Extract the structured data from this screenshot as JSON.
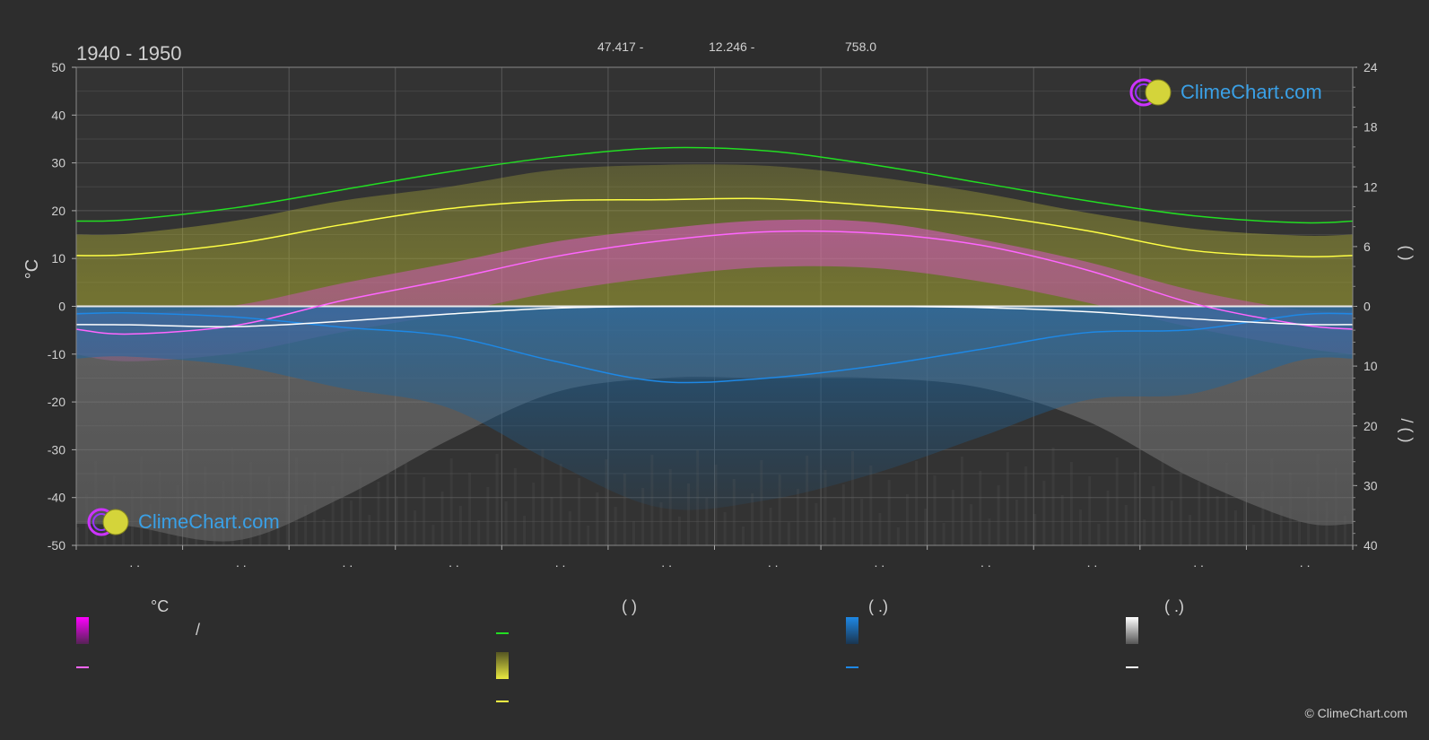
{
  "header": {
    "period": "1940 - 1950",
    "latitude": "47.417 -",
    "longitude": "12.246 -",
    "elevation": "758.0"
  },
  "colors": {
    "sunshine": "#22dd22",
    "daylight": "#d8e03a",
    "temp_avg": "#ff66ff",
    "snow_avg": "#ffffff",
    "rain_avg": "#1e88e5",
    "max_temp_line": "#ffff44",
    "brand_blue": "#3aa0e6"
  },
  "chart_data": {
    "type": "area",
    "x_ticks": [
      ". .",
      ". .",
      ". .",
      ". .",
      ". .",
      ". .",
      ". .",
      ". .",
      ". .",
      ". .",
      ". .",
      ". ."
    ],
    "left_axis": {
      "label": "°C",
      "range": [
        -50,
        50
      ],
      "ticks": [
        50,
        40,
        30,
        20,
        10,
        0,
        -10,
        -20,
        -30,
        -40,
        -50
      ]
    },
    "right_axis_top": {
      "range": [
        0,
        24
      ],
      "ticks": [
        24,
        18,
        12,
        6,
        0
      ]
    },
    "right_axis_bottom": {
      "range": [
        0,
        40
      ],
      "ticks": [
        10,
        20,
        30,
        40
      ]
    },
    "right_axis_label_top": "(   )",
    "right_axis_label_bottom": "/    (   )",
    "months_x": [
      0.5,
      1.5,
      2.5,
      3.5,
      4.5,
      5.5,
      6.5,
      7.5,
      8.5,
      9.5,
      10.5,
      11.5
    ],
    "series": [
      {
        "id": "sunshine",
        "values": [
          8.7,
          9.9,
          11.7,
          13.5,
          15.0,
          15.9,
          15.6,
          14.2,
          12.4,
          10.6,
          9.1,
          8.4
        ]
      },
      {
        "id": "daylight_top",
        "values": [
          7.3,
          8.6,
          10.6,
          12.0,
          13.7,
          14.2,
          14.1,
          13.0,
          11.4,
          9.4,
          7.8,
          7.1
        ]
      },
      {
        "id": "daylight_mean",
        "values": [
          5.2,
          6.3,
          8.2,
          9.8,
          10.6,
          10.7,
          10.8,
          10.1,
          9.2,
          7.6,
          5.6,
          5.0
        ]
      },
      {
        "id": "temp_max",
        "values": [
          -1.6,
          0.2,
          4.8,
          9.0,
          13.5,
          16.2,
          18.0,
          17.6,
          14.0,
          9.3,
          3.3,
          -0.7
        ]
      },
      {
        "id": "temp_avg",
        "values": [
          -5.8,
          -4.0,
          1.2,
          5.6,
          10.4,
          13.7,
          15.6,
          15.3,
          12.8,
          7.6,
          0.6,
          -3.8
        ]
      },
      {
        "id": "temp_min",
        "values": [
          -11.5,
          -9.8,
          -5.4,
          -1.5,
          3.0,
          6.2,
          8.2,
          8.0,
          5.2,
          0.8,
          -4.5,
          -8.6
        ]
      },
      {
        "id": "rain_avg",
        "values": [
          1.1,
          1.8,
          3.5,
          5.0,
          9.2,
          12.6,
          12.0,
          10.0,
          7.2,
          4.4,
          3.9,
          1.4
        ]
      },
      {
        "id": "snow_avg",
        "values": [
          3.1,
          3.4,
          2.5,
          1.3,
          0.3,
          0.0,
          0.0,
          0.0,
          0.2,
          0.9,
          2.1,
          3.0
        ]
      }
    ]
  },
  "legend": {
    "temp_head": "°C",
    "sun_head": "(          )",
    "rain_head": "(   .)",
    "snow_head": "(   .)",
    "temp_range_label": "/",
    "temp_avg_label": "",
    "sunshine_label": "",
    "daylight_label": "",
    "max_line_label": "",
    "rain_range_label": "",
    "rain_avg_label": "",
    "snow_range_label": "",
    "snow_avg_label": ""
  },
  "logo": {
    "text": "ClimeChart.com"
  },
  "copyright": "© ClimeChart.com"
}
